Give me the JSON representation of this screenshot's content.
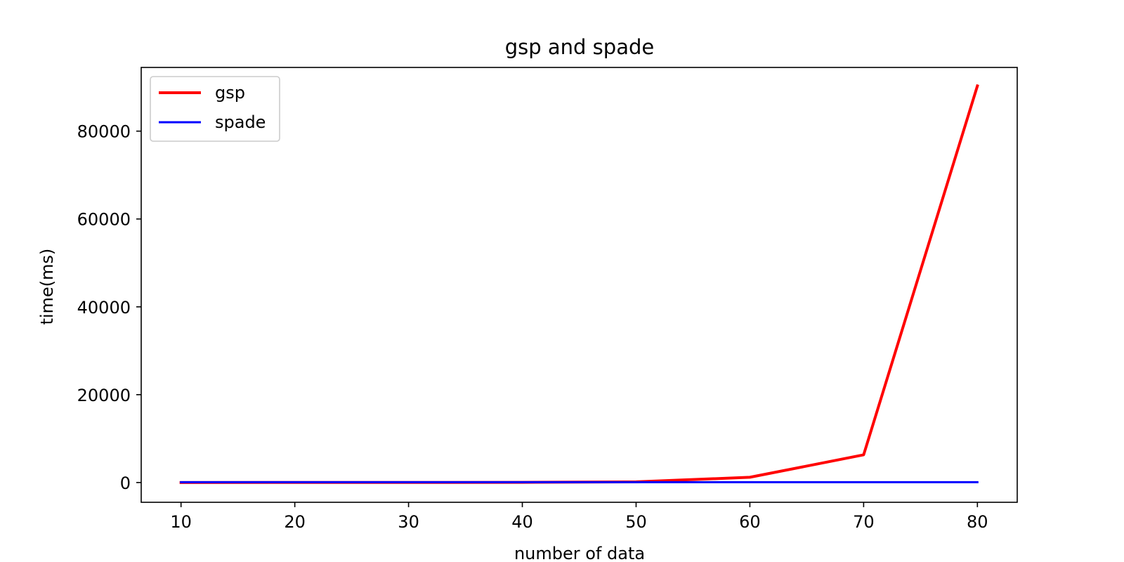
{
  "chart_data": {
    "type": "line",
    "title": "gsp and spade",
    "xlabel": "number of data",
    "ylabel": "time(ms)",
    "x": [
      10,
      20,
      30,
      40,
      50,
      60,
      70,
      80
    ],
    "xlim": [
      6.5,
      83.5
    ],
    "ylim": [
      -4500,
      94500
    ],
    "xticks": [
      10,
      20,
      30,
      40,
      50,
      60,
      70,
      80
    ],
    "yticks": [
      0,
      20000,
      40000,
      60000,
      80000
    ],
    "grid": false,
    "legend_position": "upper-left",
    "series": [
      {
        "name": "gsp",
        "color": "#ff0000",
        "values": [
          5,
          10,
          20,
          40,
          150,
          1200,
          6300,
          90300
        ]
      },
      {
        "name": "spade",
        "color": "#0000ff",
        "values": [
          80,
          80,
          80,
          80,
          80,
          80,
          80,
          80
        ]
      }
    ]
  }
}
